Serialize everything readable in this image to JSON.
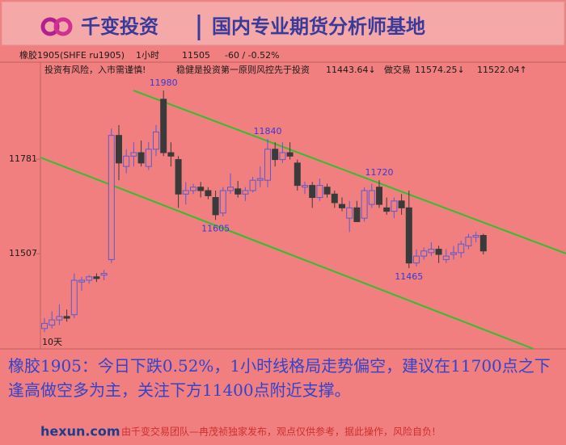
{
  "header": {
    "brand": "千变投资",
    "slogan": "国内专业期货分析师基地"
  },
  "toolbar": {
    "symbol": "橡胶1905(SHFE ru1905)",
    "period": "1小时",
    "price": "11505",
    "change": "-60 / -0.52%"
  },
  "notice": {
    "risk": "投资有风险，入市需谨慎!",
    "motto": "稳健是投资第一原则风控先于投资",
    "v1": "11443.64↓",
    "label": "做交易",
    "v2": "11574.25↓",
    "v3": "11522.04↑"
  },
  "chart_data": {
    "type": "candlestick",
    "corner_label": "10天",
    "ylim": [
      11231,
      12060
    ],
    "yticks": [
      11507,
      11781
    ],
    "up_color": "#5a5ad0",
    "down_color": "#3a3a3a",
    "open": [
      11290,
      11300,
      11315,
      11325,
      11330,
      11425,
      11430,
      11440,
      11445,
      11490,
      11850,
      11760,
      11790,
      11800,
      11760,
      11810,
      11955,
      11800,
      11780,
      11680,
      11690,
      11700,
      11690,
      11670,
      11625,
      11690,
      11695,
      11680,
      11690,
      11720,
      11720,
      11810,
      11780,
      11800,
      11770,
      11700,
      11705,
      11670,
      11700,
      11680,
      11650,
      11610,
      11640,
      11610,
      11650,
      11700,
      11640,
      11630,
      11660,
      11640,
      11480,
      11500,
      11510,
      11520,
      11490,
      11505,
      11510,
      11530,
      11555,
      11560
    ],
    "high": [
      11320,
      11340,
      11360,
      11345,
      11450,
      11440,
      11445,
      11450,
      11460,
      11870,
      11880,
      11810,
      11830,
      11835,
      11830,
      11880,
      11980,
      11830,
      11790,
      11715,
      11710,
      11715,
      11700,
      11690,
      11700,
      11740,
      11718,
      11700,
      11730,
      11760,
      11840,
      11830,
      11830,
      11830,
      11780,
      11716,
      11715,
      11725,
      11710,
      11690,
      11670,
      11660,
      11660,
      11700,
      11710,
      11720,
      11670,
      11670,
      11680,
      11690,
      11520,
      11525,
      11540,
      11530,
      11520,
      11530,
      11545,
      11565,
      11570,
      11565
    ],
    "low": [
      11280,
      11290,
      11300,
      11310,
      11320,
      11400,
      11420,
      11425,
      11430,
      11480,
      11720,
      11740,
      11760,
      11760,
      11750,
      11790,
      11790,
      11760,
      11640,
      11650,
      11680,
      11670,
      11665,
      11605,
      11615,
      11680,
      11670,
      11660,
      11685,
      11700,
      11700,
      11760,
      11770,
      11780,
      11690,
      11680,
      11640,
      11660,
      11670,
      11640,
      11630,
      11570,
      11600,
      11600,
      11640,
      11640,
      11620,
      11610,
      11620,
      11465,
      11470,
      11490,
      11500,
      11480,
      11480,
      11490,
      11495,
      11520,
      11540,
      11505
    ],
    "close": [
      11305,
      11315,
      11325,
      11320,
      11430,
      11430,
      11440,
      11435,
      11450,
      11850,
      11770,
      11790,
      11800,
      11770,
      11810,
      11860,
      11800,
      11790,
      11680,
      11690,
      11700,
      11690,
      11675,
      11620,
      11690,
      11700,
      11680,
      11690,
      11720,
      11725,
      11810,
      11780,
      11800,
      11790,
      11705,
      11705,
      11670,
      11705,
      11680,
      11655,
      11640,
      11640,
      11600,
      11690,
      11690,
      11650,
      11630,
      11660,
      11640,
      11480,
      11500,
      11515,
      11520,
      11505,
      11500,
      11510,
      11535,
      11555,
      11560,
      11515
    ],
    "annotations": [
      11980,
      11840,
      11720,
      11605,
      11465
    ]
  },
  "commentary": "橡胶1905：今日下跌0.52%，1小时线格局走势偏空，建议在11700点之下逢高做空多为主，关注下方11400点附近支撑。",
  "footer": {
    "site": "hexun.com",
    "disclaimer": "由千变交易团队—冉茂祯独家发布，观点仅供参考，据此操作，风险自负!"
  }
}
